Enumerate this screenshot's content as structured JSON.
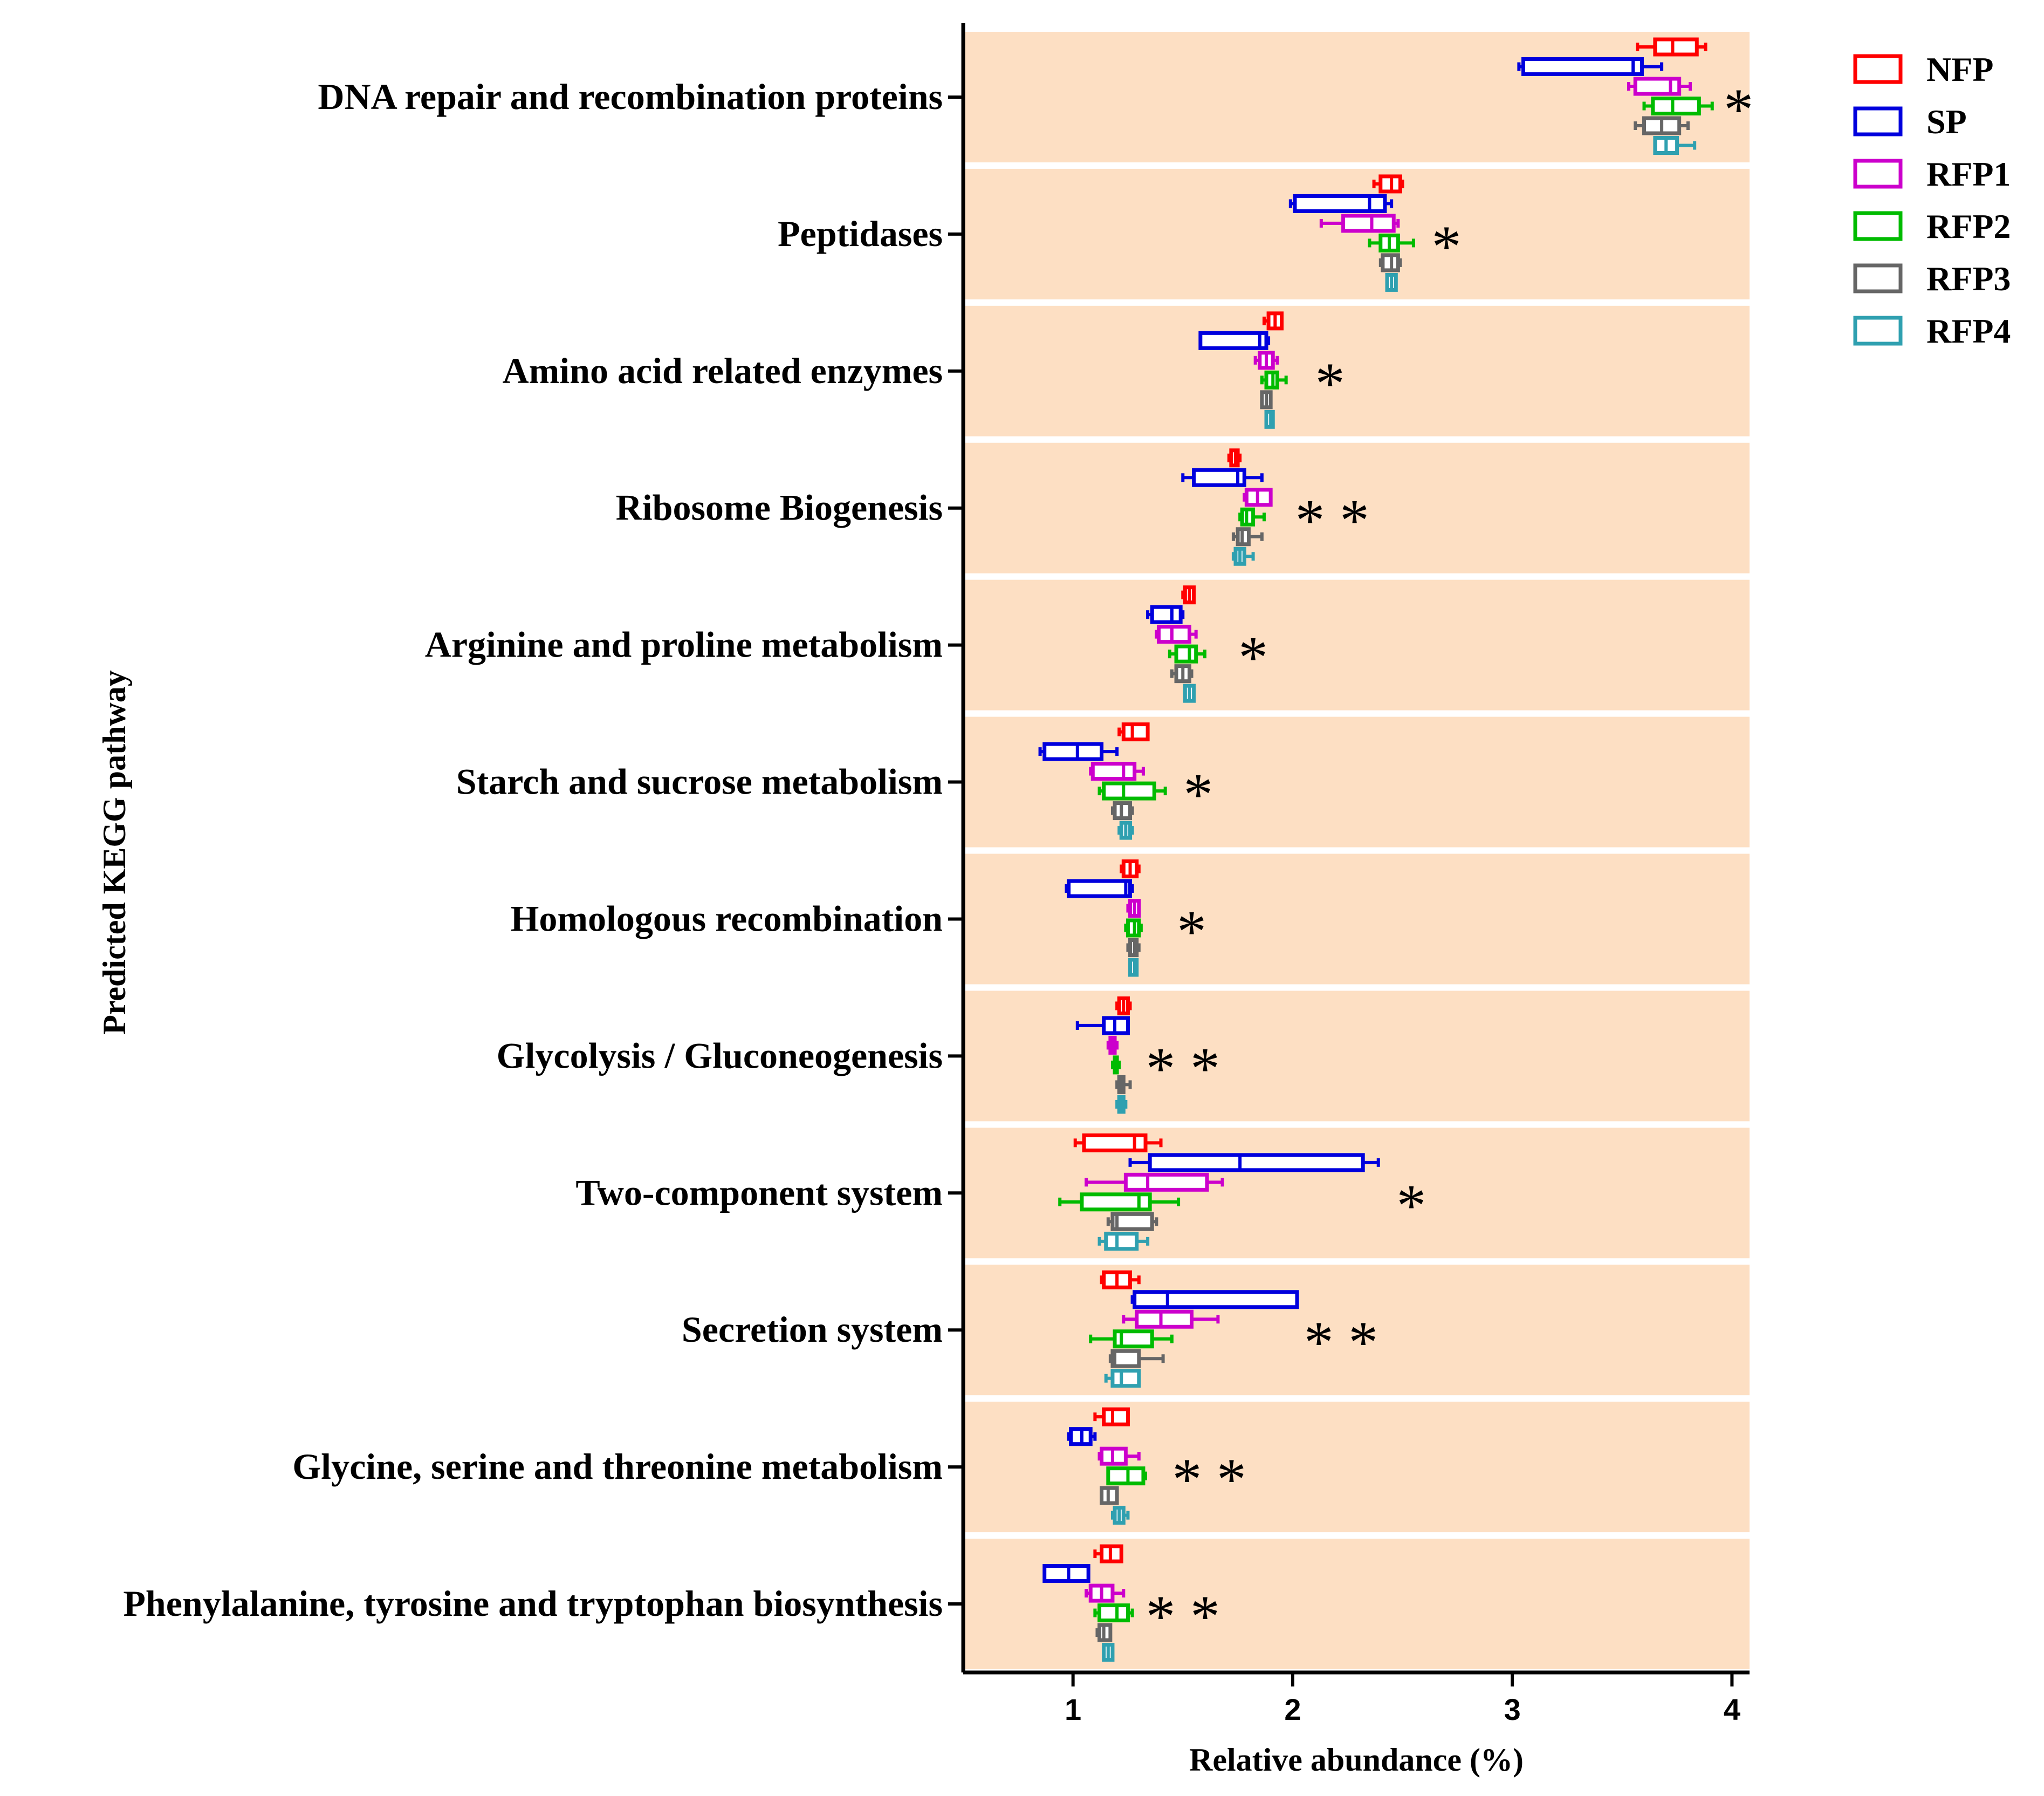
{
  "chart_data": {
    "type": "boxplot",
    "orientation": "horizontal",
    "xlabel": "Relative abundance (%)",
    "ylabel": "Predicted KEGG pathway",
    "xlim": [
      0.5,
      4.08
    ],
    "xticks": [
      1,
      2,
      3,
      4
    ],
    "band_color": "#FDDFC3",
    "legend_position": "top-right",
    "groups": [
      {
        "name": "NFP",
        "color": "#FF0000"
      },
      {
        "name": "SP",
        "color": "#0000DD"
      },
      {
        "name": "RFP1",
        "color": "#CC00CC"
      },
      {
        "name": "RFP2",
        "color": "#00BB00"
      },
      {
        "name": "RFP3",
        "color": "#666666"
      },
      {
        "name": "RFP4",
        "color": "#2FA0B0"
      }
    ],
    "box_format": [
      "min",
      "q1",
      "median",
      "q3",
      "max"
    ],
    "categories": [
      {
        "label": "DNA repair and recombination proteins",
        "significance": "*",
        "sig_x": 4.03,
        "boxes": [
          [
            3.57,
            3.65,
            3.73,
            3.84,
            3.88
          ],
          [
            3.03,
            3.05,
            3.55,
            3.59,
            3.68
          ],
          [
            3.53,
            3.56,
            3.72,
            3.76,
            3.81
          ],
          [
            3.6,
            3.64,
            3.73,
            3.85,
            3.91
          ],
          [
            3.56,
            3.6,
            3.68,
            3.76,
            3.8
          ],
          [
            3.65,
            3.65,
            3.7,
            3.75,
            3.83
          ]
        ]
      },
      {
        "label": "Peptidases",
        "significance": "*",
        "sig_x": 2.7,
        "boxes": [
          [
            2.37,
            2.4,
            2.45,
            2.49,
            2.5
          ],
          [
            1.99,
            2.01,
            2.35,
            2.42,
            2.45
          ],
          [
            2.13,
            2.23,
            2.36,
            2.46,
            2.48
          ],
          [
            2.35,
            2.4,
            2.44,
            2.48,
            2.55
          ],
          [
            2.4,
            2.41,
            2.45,
            2.48,
            2.49
          ],
          [
            2.43,
            2.43,
            2.45,
            2.47,
            2.47
          ]
        ]
      },
      {
        "label": "Amino acid related enzymes",
        "significance": "*",
        "sig_x": 2.17,
        "boxes": [
          [
            1.87,
            1.89,
            1.92,
            1.95,
            1.95
          ],
          [
            1.58,
            1.58,
            1.85,
            1.88,
            1.89
          ],
          [
            1.83,
            1.85,
            1.88,
            1.91,
            1.93
          ],
          [
            1.86,
            1.88,
            1.91,
            1.93,
            1.97
          ],
          [
            1.86,
            1.86,
            1.88,
            1.9,
            1.9
          ],
          [
            1.88,
            1.88,
            1.9,
            1.91,
            1.91
          ]
        ]
      },
      {
        "label": "Ribosome Biogenesis",
        "significance": "**",
        "sig_x": 2.18,
        "boxes": [
          [
            1.71,
            1.72,
            1.74,
            1.75,
            1.76
          ],
          [
            1.5,
            1.55,
            1.75,
            1.78,
            1.86
          ],
          [
            1.78,
            1.79,
            1.84,
            1.9,
            1.9
          ],
          [
            1.76,
            1.77,
            1.79,
            1.82,
            1.87
          ],
          [
            1.73,
            1.75,
            1.77,
            1.8,
            1.86
          ],
          [
            1.73,
            1.74,
            1.76,
            1.78,
            1.82
          ]
        ]
      },
      {
        "label": "Arginine and proline metabolism",
        "significance": "*",
        "sig_x": 1.82,
        "boxes": [
          [
            1.5,
            1.51,
            1.53,
            1.55,
            1.55
          ],
          [
            1.34,
            1.36,
            1.45,
            1.49,
            1.5
          ],
          [
            1.38,
            1.39,
            1.45,
            1.53,
            1.56
          ],
          [
            1.44,
            1.47,
            1.53,
            1.56,
            1.6
          ],
          [
            1.45,
            1.47,
            1.5,
            1.53,
            1.54
          ],
          [
            1.51,
            1.51,
            1.53,
            1.55,
            1.55
          ]
        ]
      },
      {
        "label": "Starch and sucrose metabolism",
        "significance": "*",
        "sig_x": 1.57,
        "boxes": [
          [
            1.21,
            1.23,
            1.27,
            1.34,
            1.34
          ],
          [
            0.85,
            0.87,
            1.02,
            1.13,
            1.2
          ],
          [
            1.08,
            1.09,
            1.23,
            1.28,
            1.32
          ],
          [
            1.12,
            1.14,
            1.23,
            1.37,
            1.42
          ],
          [
            1.18,
            1.19,
            1.22,
            1.26,
            1.27
          ],
          [
            1.21,
            1.22,
            1.24,
            1.26,
            1.27
          ]
        ]
      },
      {
        "label": "Homologous recombination",
        "significance": "*",
        "sig_x": 1.54,
        "boxes": [
          [
            1.22,
            1.23,
            1.26,
            1.29,
            1.3
          ],
          [
            0.97,
            0.98,
            1.24,
            1.26,
            1.27
          ],
          [
            1.25,
            1.26,
            1.28,
            1.3,
            1.3
          ],
          [
            1.24,
            1.25,
            1.28,
            1.3,
            1.31
          ],
          [
            1.25,
            1.26,
            1.28,
            1.29,
            1.3
          ],
          [
            1.26,
            1.26,
            1.28,
            1.29,
            1.29
          ]
        ]
      },
      {
        "label": "Glycolysis / Gluconeogenesis",
        "significance": "**",
        "sig_x": 1.5,
        "boxes": [
          [
            1.2,
            1.21,
            1.23,
            1.25,
            1.26
          ],
          [
            1.02,
            1.14,
            1.19,
            1.25,
            1.25
          ],
          [
            1.16,
            1.17,
            1.18,
            1.19,
            1.2
          ],
          [
            1.18,
            1.19,
            1.2,
            1.2,
            1.21
          ],
          [
            1.2,
            1.21,
            1.22,
            1.23,
            1.26
          ],
          [
            1.2,
            1.21,
            1.22,
            1.23,
            1.24
          ]
        ]
      },
      {
        "label": "Two-component system",
        "significance": "*",
        "sig_x": 2.54,
        "boxes": [
          [
            1.01,
            1.05,
            1.28,
            1.33,
            1.4
          ],
          [
            1.26,
            1.35,
            1.76,
            2.32,
            2.39
          ],
          [
            1.06,
            1.24,
            1.34,
            1.61,
            1.68
          ],
          [
            0.94,
            1.04,
            1.3,
            1.35,
            1.48
          ],
          [
            1.16,
            1.18,
            1.2,
            1.36,
            1.38
          ],
          [
            1.12,
            1.15,
            1.2,
            1.29,
            1.34
          ]
        ]
      },
      {
        "label": "Secretion system",
        "significance": "**",
        "sig_x": 2.22,
        "boxes": [
          [
            1.13,
            1.14,
            1.2,
            1.26,
            1.3
          ],
          [
            1.27,
            1.28,
            1.43,
            2.02,
            2.02
          ],
          [
            1.23,
            1.29,
            1.4,
            1.54,
            1.66
          ],
          [
            1.08,
            1.19,
            1.22,
            1.36,
            1.45
          ],
          [
            1.17,
            1.18,
            1.19,
            1.3,
            1.41
          ],
          [
            1.15,
            1.18,
            1.22,
            1.3,
            1.3
          ]
        ]
      },
      {
        "label": "Glycine, serine and threonine metabolism",
        "significance": "**",
        "sig_x": 1.62,
        "boxes": [
          [
            1.1,
            1.14,
            1.18,
            1.25,
            1.25
          ],
          [
            0.98,
            0.99,
            1.04,
            1.08,
            1.1
          ],
          [
            1.12,
            1.13,
            1.18,
            1.24,
            1.3
          ],
          [
            1.16,
            1.16,
            1.25,
            1.32,
            1.33
          ],
          [
            1.13,
            1.13,
            1.16,
            1.2,
            1.2
          ],
          [
            1.18,
            1.19,
            1.21,
            1.23,
            1.25
          ]
        ]
      },
      {
        "label": "Phenylalanine, tyrosine and tryptophan biosynthesis",
        "significance": "**",
        "sig_x": 1.5,
        "boxes": [
          [
            1.1,
            1.13,
            1.17,
            1.22,
            1.22
          ],
          [
            0.87,
            0.87,
            0.98,
            1.07,
            1.07
          ],
          [
            1.06,
            1.08,
            1.13,
            1.18,
            1.23
          ],
          [
            1.1,
            1.12,
            1.2,
            1.25,
            1.27
          ],
          [
            1.11,
            1.12,
            1.14,
            1.17,
            1.17
          ],
          [
            1.14,
            1.14,
            1.16,
            1.18,
            1.18
          ]
        ]
      }
    ]
  }
}
